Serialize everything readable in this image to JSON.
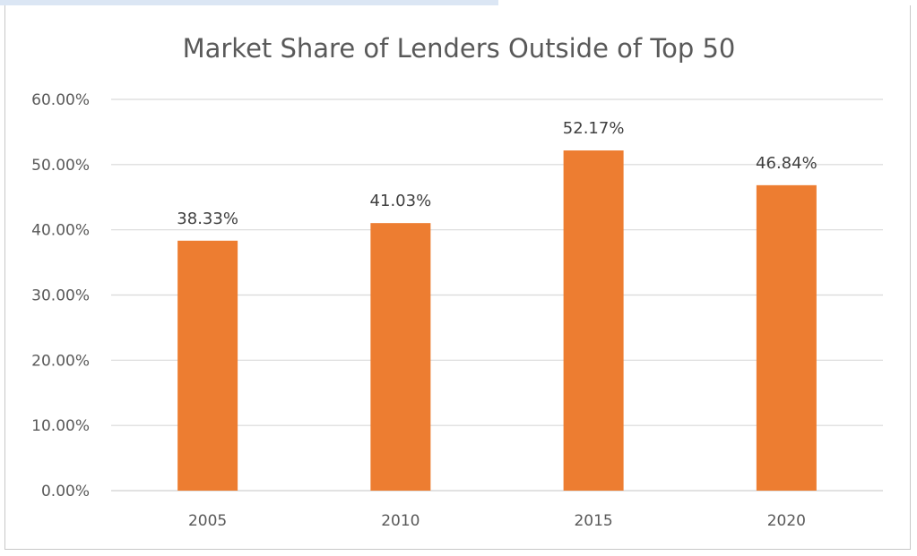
{
  "chart_data": {
    "type": "bar",
    "title": "Market Share of Lenders Outside of Top 50",
    "xlabel": "",
    "ylabel": "",
    "categories": [
      "2005",
      "2010",
      "2015",
      "2020"
    ],
    "values": [
      38.33,
      41.03,
      52.17,
      46.84
    ],
    "data_labels": [
      "38.33%",
      "41.03%",
      "52.17%",
      "46.84%"
    ],
    "ylim": [
      0,
      60
    ],
    "yticks": [
      0,
      10,
      20,
      30,
      40,
      50,
      60
    ],
    "ytick_labels": [
      "0.00%",
      "10.00%",
      "20.00%",
      "30.00%",
      "40.00%",
      "50.00%",
      "60.00%"
    ],
    "grid": true,
    "legend": "none",
    "bar_color": "#ed7d31",
    "grid_color": "#d9d9d9"
  }
}
